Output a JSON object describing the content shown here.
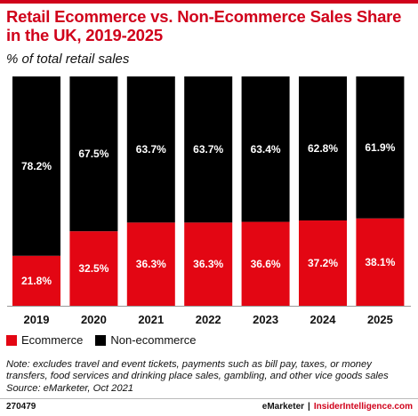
{
  "colors": {
    "ecommerce": "#e30613",
    "non_ecommerce": "#000000",
    "accent": "#d0021b"
  },
  "header": {
    "title": "Retail Ecommerce vs. Non-Ecommerce Sales Share in the UK, 2019-2025",
    "subtitle": "% of total retail sales"
  },
  "legend": {
    "ecommerce": "Ecommerce",
    "non_ecommerce": "Non-ecommerce"
  },
  "note": "Note: excludes travel and event tickets, payments such as bill pay, taxes, or money transfers, food services and drinking place sales, gambling, and other vice goods sales",
  "source": "Source: eMarketer, Oct 2021",
  "footer": {
    "id": "270479",
    "brand": "eMarketer",
    "site": "InsiderIntelligence.com"
  },
  "chart_data": {
    "type": "bar",
    "stacked": true,
    "categories": [
      "2019",
      "2020",
      "2021",
      "2022",
      "2023",
      "2024",
      "2025"
    ],
    "series": [
      {
        "name": "Ecommerce",
        "values": [
          21.8,
          32.5,
          36.3,
          36.3,
          36.6,
          37.2,
          38.1
        ],
        "labels": [
          "21.8%",
          "32.5%",
          "36.3%",
          "36.3%",
          "36.6%",
          "37.2%",
          "38.1%"
        ]
      },
      {
        "name": "Non-ecommerce",
        "values": [
          78.2,
          67.5,
          63.7,
          63.7,
          63.4,
          62.8,
          61.9
        ],
        "labels": [
          "78.2%",
          "67.5%",
          "63.7%",
          "63.7%",
          "63.4%",
          "62.8%",
          "61.9%"
        ]
      }
    ],
    "ylim": [
      0,
      100
    ],
    "grid": false,
    "legend_position": "bottom-left"
  }
}
